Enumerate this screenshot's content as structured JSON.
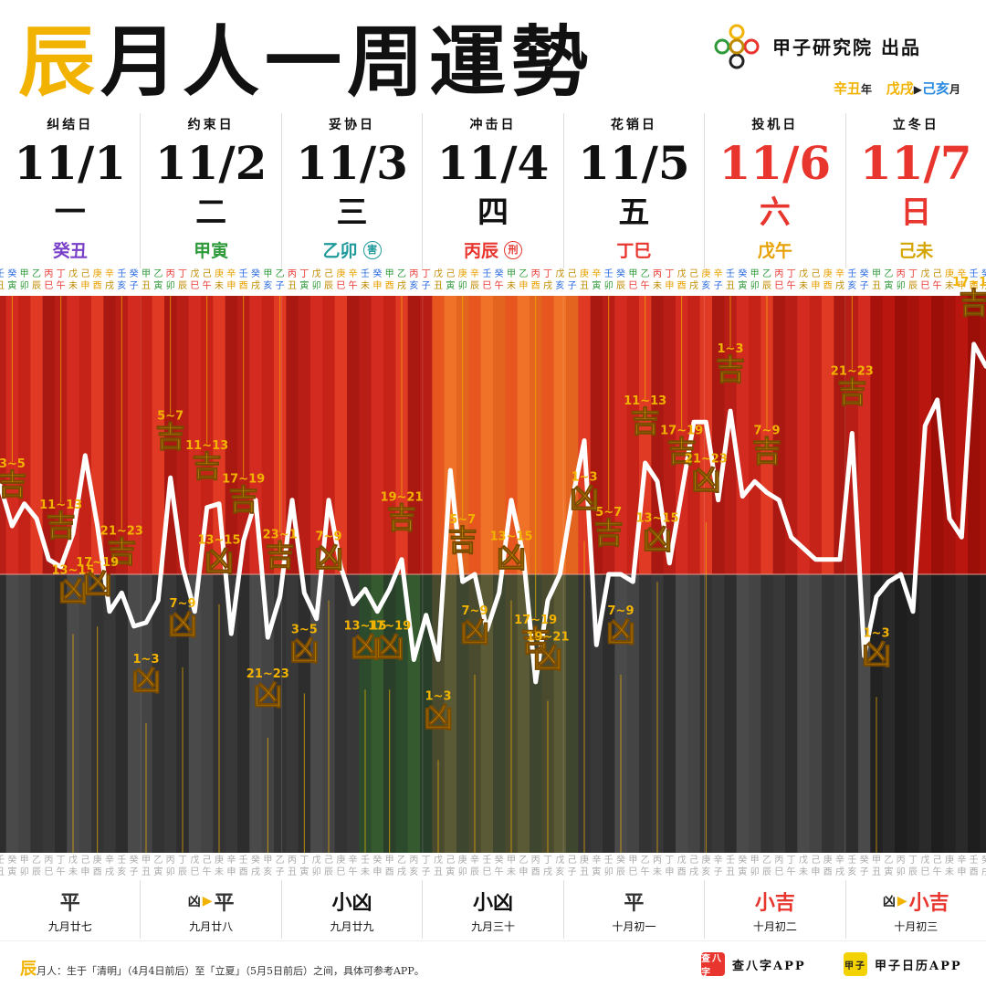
{
  "header": {
    "title_accent": "辰",
    "title_rest": "月人一周運勢",
    "brand_name": "甲子研究院 出品",
    "brand_year": "辛丑",
    "brand_year_suffix": "年",
    "brand_month_from": "戊戌",
    "brand_month_to": "己亥",
    "brand_month_suffix": "月"
  },
  "days": [
    {
      "label": "纠结日",
      "date": "11/1",
      "weekday": "一",
      "ganzhi": "癸丑",
      "mark": "",
      "label_color": "#111111",
      "date_color": "#111111",
      "gz_color": "#7a3fc8"
    },
    {
      "label": "约束日",
      "date": "11/2",
      "weekday": "二",
      "ganzhi": "甲寅",
      "mark": "",
      "label_color": "#111111",
      "date_color": "#111111",
      "gz_color": "#2f9a3a"
    },
    {
      "label": "妥协日",
      "date": "11/3",
      "weekday": "三",
      "ganzhi": "乙卯",
      "mark": "害",
      "label_color": "#111111",
      "date_color": "#111111",
      "gz_color": "#1f9a9a"
    },
    {
      "label": "冲击日",
      "date": "11/4",
      "weekday": "四",
      "ganzhi": "丙辰",
      "mark": "刑",
      "label_color": "#111111",
      "date_color": "#111111",
      "gz_color": "#e8362f"
    },
    {
      "label": "花销日",
      "date": "11/5",
      "weekday": "五",
      "ganzhi": "丁巳",
      "mark": "",
      "label_color": "#111111",
      "date_color": "#111111",
      "gz_color": "#e8362f"
    },
    {
      "label": "投机日",
      "date": "11/6",
      "weekday": "六",
      "ganzhi": "戊午",
      "mark": "",
      "label_color": "#111111",
      "date_color": "#e8362f",
      "gz_color": "#e8a000"
    },
    {
      "label": "立冬日",
      "date": "11/7",
      "weekday": "日",
      "ganzhi": "己未",
      "mark": "",
      "label_color": "#111111",
      "date_color": "#e8362f",
      "gz_color": "#d4a400"
    }
  ],
  "bottom": [
    {
      "from": "",
      "status": "平",
      "lunar": "九月廿七",
      "color": "#333333"
    },
    {
      "from": "凶",
      "status": "平",
      "lunar": "九月廿八",
      "color": "#333333"
    },
    {
      "from": "",
      "status": "小凶",
      "lunar": "九月廿九",
      "color": "#111111"
    },
    {
      "from": "",
      "status": "小凶",
      "lunar": "九月三十",
      "color": "#111111"
    },
    {
      "from": "",
      "status": "平",
      "lunar": "十月初一",
      "color": "#333333"
    },
    {
      "from": "",
      "status": "小吉",
      "lunar": "十月初二",
      "color": "#e8362f"
    },
    {
      "from": "凶",
      "status": "小吉",
      "lunar": "十月初三",
      "color": "#e8362f"
    }
  ],
  "footer": {
    "note_accent": "辰",
    "note": "月人：生于「清明」（4月4日前后）至「立夏」（5月5日前后）之间，具体可参考APP。",
    "app1_icon": "查八字",
    "app1": "查八字APP",
    "app2_icon": "甲子",
    "app2": "甲子日历APP"
  },
  "colors": {
    "accent": "#f2b300",
    "good_bg": "#c8241c",
    "bad_bg": "#3a3a3a",
    "line": "#ffffff",
    "label": "#f2b300"
  },
  "chart_data": {
    "type": "line",
    "stems": [
      "甲",
      "乙",
      "丙",
      "丁",
      "戊",
      "己",
      "庚",
      "辛",
      "壬",
      "癸"
    ],
    "branches": [
      "子",
      "丑",
      "寅",
      "卯",
      "辰",
      "巳",
      "午",
      "未",
      "申",
      "酉",
      "戌",
      "亥"
    ],
    "stem_colors": {
      "甲": "#2f9a3a",
      "乙": "#2f9a3a",
      "丙": "#e8362f",
      "丁": "#e8362f",
      "戊": "#c08a00",
      "己": "#c08a00",
      "庚": "#e8a000",
      "辛": "#e8a000",
      "壬": "#2a6be0",
      "癸": "#2a6be0"
    },
    "branch_colors": {
      "子": "#2a6be0",
      "亥": "#2a6be0",
      "寅": "#2f9a3a",
      "卯": "#2f9a3a",
      "巳": "#e8362f",
      "午": "#e8362f",
      "辰": "#c08a00",
      "戌": "#c08a00",
      "丑": "#c08a00",
      "未": "#c08a00",
      "申": "#e8a000",
      "酉": "#e8a000"
    },
    "start_stem_index": 8,
    "start_branch_index": 1,
    "values": [
      0.24,
      0.13,
      0.19,
      0.15,
      0.04,
      0.02,
      0.11,
      0.32,
      0.13,
      -0.1,
      -0.05,
      -0.14,
      -0.13,
      -0.07,
      0.26,
      0.02,
      -0.1,
      0.18,
      0.19,
      -0.16,
      0.09,
      0.2,
      -0.17,
      -0.06,
      0.2,
      -0.05,
      -0.12,
      0.2,
      0.02,
      -0.08,
      -0.04,
      -0.1,
      -0.04,
      0.04,
      -0.23,
      -0.11,
      -0.23,
      0.28,
      -0.02,
      0.0,
      -0.15,
      -0.05,
      0.2,
      0.05,
      -0.29,
      -0.07,
      0.0,
      0.2,
      0.36,
      -0.19,
      0.0,
      0.0,
      -0.02,
      0.3,
      0.25,
      0.03,
      0.22,
      0.41,
      0.41,
      0.2,
      0.44,
      0.21,
      0.25,
      0.22,
      0.2,
      0.1,
      0.07,
      0.04,
      0.04,
      0.04,
      0.38,
      -0.22,
      -0.06,
      -0.02,
      0.0,
      -0.1,
      0.4,
      0.47,
      0.15,
      0.1,
      0.62,
      0.56
    ],
    "good_labels": [
      {
        "time": "3~5",
        "text": "吉",
        "index": 1
      },
      {
        "time": "11~13",
        "text": "吉",
        "index": 5
      },
      {
        "time": "21~23",
        "text": "吉",
        "index": 10
      },
      {
        "time": "5~7",
        "text": "吉",
        "index": 14
      },
      {
        "time": "11~13",
        "text": "吉",
        "index": 17
      },
      {
        "time": "17~19",
        "text": "吉",
        "index": 20
      },
      {
        "time": "23~1",
        "text": "吉",
        "index": 23
      },
      {
        "time": "19~21",
        "text": "吉",
        "index": 33
      },
      {
        "time": "5~7",
        "text": "吉",
        "index": 38
      },
      {
        "time": "17~19",
        "text": "吉",
        "index": 44
      },
      {
        "time": "5~7",
        "text": "吉",
        "index": 50
      },
      {
        "time": "11~13",
        "text": "吉",
        "index": 53
      },
      {
        "time": "17~19",
        "text": "吉",
        "index": 56
      },
      {
        "time": "1~3",
        "text": "吉",
        "index": 60
      },
      {
        "time": "7~9",
        "text": "吉",
        "index": 63
      },
      {
        "time": "21~23",
        "text": "吉",
        "index": 70
      },
      {
        "time": "17~19",
        "text": "吉",
        "index": 80
      }
    ],
    "bad_labels": [
      {
        "time": "13~15",
        "text": "凶",
        "index": 6
      },
      {
        "time": "17~19",
        "text": "凶",
        "index": 8
      },
      {
        "time": "1~3",
        "text": "凶",
        "index": 12
      },
      {
        "time": "7~9",
        "text": "凶",
        "index": 15
      },
      {
        "time": "13~15",
        "text": "凶",
        "index": 18
      },
      {
        "time": "21~23",
        "text": "凶",
        "index": 22
      },
      {
        "time": "3~5",
        "text": "凶",
        "index": 25
      },
      {
        "time": "7~9",
        "text": "凶",
        "index": 27
      },
      {
        "time": "13~15",
        "text": "凶",
        "index": 30
      },
      {
        "time": "17~19",
        "text": "凶",
        "index": 32
      },
      {
        "time": "1~3",
        "text": "凶",
        "index": 36
      },
      {
        "time": "7~9",
        "text": "凶",
        "index": 39
      },
      {
        "time": "13~15",
        "text": "凶",
        "index": 42
      },
      {
        "time": "19~21",
        "text": "凶",
        "index": 45
      },
      {
        "time": "1~3",
        "text": "凶",
        "index": 48
      },
      {
        "time": "7~9",
        "text": "凶",
        "index": 51
      },
      {
        "time": "13~15",
        "text": "凶",
        "index": 54
      },
      {
        "time": "21~23",
        "text": "凶",
        "index": 58
      },
      {
        "time": "1~3",
        "text": "凶",
        "index": 72
      }
    ]
  }
}
